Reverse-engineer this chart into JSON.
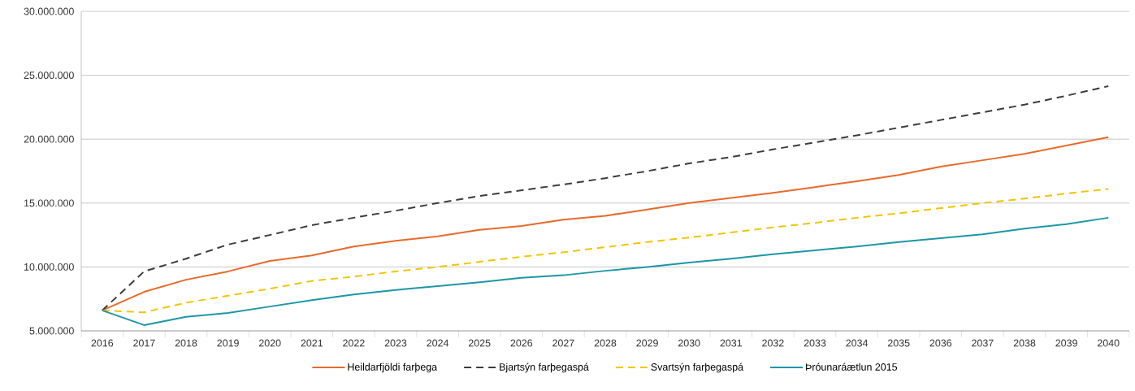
{
  "chart_data": {
    "type": "line",
    "categories": [
      "2016",
      "2017",
      "2018",
      "2019",
      "2020",
      "2021",
      "2022",
      "2023",
      "2024",
      "2025",
      "2026",
      "2027",
      "2028",
      "2029",
      "2030",
      "2031",
      "2032",
      "2033",
      "2034",
      "2035",
      "2036",
      "2037",
      "2038",
      "2039",
      "2040"
    ],
    "series": [
      {
        "name": "Heildarfjöldi farþega",
        "color": "#e8692a",
        "line_style": "solid",
        "values": [
          6600000,
          8050000,
          9000000,
          9650000,
          10470000,
          10900000,
          11600000,
          12050000,
          12400000,
          12900000,
          13200000,
          13700000,
          14000000,
          14500000,
          15000000,
          15400000,
          15800000,
          16250000,
          16700000,
          17200000,
          17850000,
          18350000,
          18850000,
          19500000,
          20150000
        ]
      },
      {
        "name": "Bjartsýn farþegaspá",
        "color": "#3c3c3c",
        "line_style": "dashed",
        "values": [
          6600000,
          9650000,
          10650000,
          11750000,
          12500000,
          13270000,
          13850000,
          14400000,
          15000000,
          15550000,
          16000000,
          16450000,
          16950000,
          17500000,
          18100000,
          18600000,
          19200000,
          19750000,
          20300000,
          20900000,
          21500000,
          22100000,
          22700000,
          23400000,
          24150000
        ]
      },
      {
        "name": "Svartsýn farþegaspá",
        "color": "#f2c500",
        "line_style": "dashed",
        "values": [
          6600000,
          6450000,
          7200000,
          7750000,
          8300000,
          8900000,
          9250000,
          9650000,
          10000000,
          10400000,
          10800000,
          11150000,
          11550000,
          11950000,
          12300000,
          12700000,
          13100000,
          13450000,
          13850000,
          14200000,
          14600000,
          15000000,
          15350000,
          15750000,
          16100000
        ]
      },
      {
        "name": "Þróunaráætlun 2015",
        "color": "#1c97a6",
        "line_style": "solid",
        "values": [
          6600000,
          5450000,
          6100000,
          6400000,
          6900000,
          7400000,
          7850000,
          8200000,
          8500000,
          8800000,
          9150000,
          9350000,
          9700000,
          10000000,
          10350000,
          10650000,
          11000000,
          11300000,
          11600000,
          11950000,
          12250000,
          12550000,
          13000000,
          13350000,
          13850000
        ]
      }
    ],
    "ylim": [
      5000000,
      30000000
    ],
    "yticks": [
      {
        "value": 5000000,
        "label": "5.000.000"
      },
      {
        "value": 10000000,
        "label": "10.000.000"
      },
      {
        "value": 15000000,
        "label": "15.000.000"
      },
      {
        "value": 20000000,
        "label": "20.000.000"
      },
      {
        "value": 25000000,
        "label": "25.000.000"
      },
      {
        "value": 30000000,
        "label": "30.000.000"
      }
    ],
    "grid": "y",
    "legend": "bottom",
    "marker": "none"
  }
}
